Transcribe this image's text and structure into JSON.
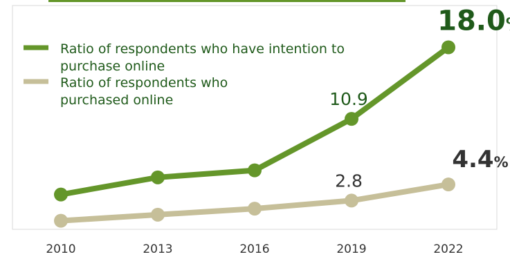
{
  "chart_data": {
    "type": "line",
    "categories": [
      "2010",
      "2013",
      "2016",
      "2019",
      "2022"
    ],
    "series": [
      {
        "name_lines": [
          "Ratio of respondents who have intention to",
          "purchase online"
        ],
        "values": [
          3.4,
          5.1,
          5.8,
          10.9,
          18.0
        ],
        "color": "#64962a"
      },
      {
        "name_lines": [
          "Ratio of respondents who",
          "purchased online"
        ],
        "values": [
          0.8,
          1.4,
          2.0,
          2.8,
          4.4
        ],
        "color": "#c6bf99"
      }
    ],
    "annotations": [
      {
        "series_index": 0,
        "category_index": 3,
        "text": "10.9"
      },
      {
        "series_index": 0,
        "category_index": 4,
        "text": "18.0",
        "unit": "%"
      },
      {
        "series_index": 1,
        "category_index": 3,
        "text": "2.8"
      },
      {
        "series_index": 1,
        "category_index": 4,
        "text": "4.4",
        "unit": "%"
      }
    ],
    "legend_position": "top-left",
    "grid": false,
    "xlabel": "",
    "ylabel": "",
    "title": ""
  },
  "colors": {
    "axis_frame": "#d8d8d8",
    "top_bar": "#64962a",
    "label_dark_green": "#1f5a1a",
    "label_gray": "#333333"
  }
}
